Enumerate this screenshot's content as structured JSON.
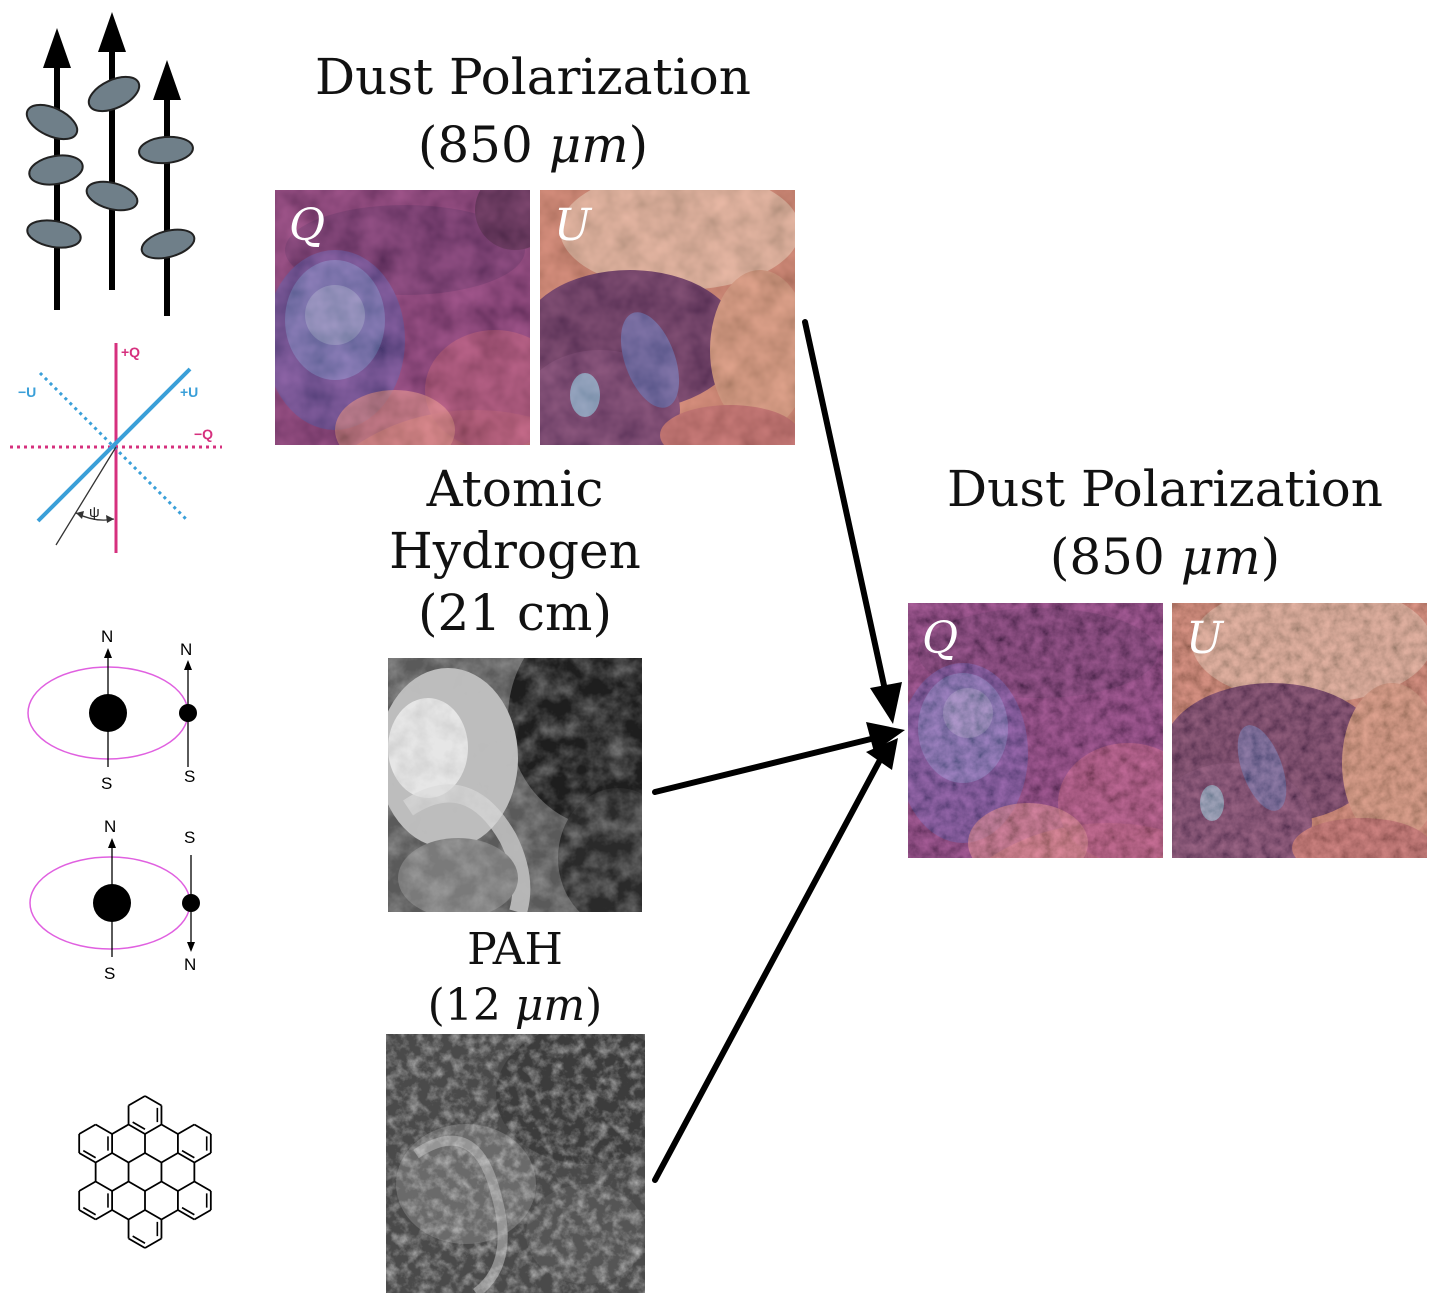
{
  "top_block": {
    "title_line1": "Dust Polarization",
    "title_prefix": "(850 ",
    "title_unit": "μm",
    "title_suffix": ")",
    "q_label": "Q",
    "u_label": "U"
  },
  "hi_block": {
    "title_line1": "Atomic",
    "title_line2": "Hydrogen",
    "title_line3": "(21 cm)"
  },
  "pah_block": {
    "title_line1": "PAH",
    "title_prefix": "(12 ",
    "title_unit": "μm",
    "title_suffix": ")"
  },
  "output_block": {
    "title_line1": "Dust Polarization",
    "title_prefix": "(850 ",
    "title_unit": "μm",
    "title_suffix": ")",
    "q_label": "Q",
    "u_label": "U"
  },
  "stokes_diagram": {
    "plus_q": "+Q",
    "minus_q": "−Q",
    "plus_u": "+U",
    "minus_u": "−U",
    "psi": "ψ"
  },
  "spin_diagram": {
    "top_left_n": "N",
    "top_left_s": "S",
    "top_right_n": "N",
    "top_right_s": "S",
    "bottom_left_n": "N",
    "bottom_left_s": "S",
    "bottom_right_s": "S",
    "bottom_right_n": "N"
  },
  "colors": {
    "stokes_q": "#d6307e",
    "stokes_u": "#3a9fd8",
    "orbit": "#e060e0",
    "grain": "#6f7f89",
    "arrow": "#000000"
  }
}
